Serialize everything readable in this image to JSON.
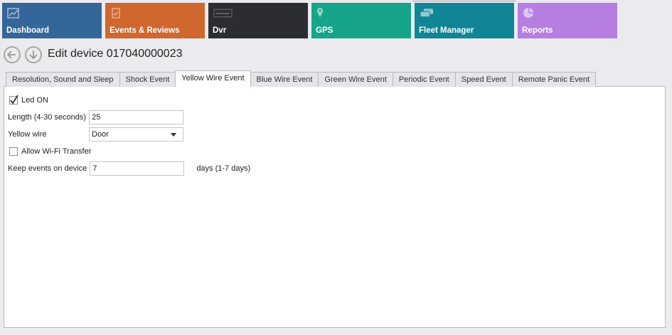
{
  "tiles": [
    {
      "label": "Dashboard",
      "icon": "chart-icon",
      "color": "#346699"
    },
    {
      "label": "Events & Reviews",
      "icon": "clipboard-icon",
      "color": "#d0672f"
    },
    {
      "label": "Dvr",
      "icon": "dvr-icon",
      "color": "#2b2d31"
    },
    {
      "label": "GPS",
      "icon": "location-pin-icon",
      "color": "#17a589"
    },
    {
      "label": "Fleet Manager",
      "icon": "cars-icon",
      "color": "#0f8596"
    },
    {
      "label": "Reports",
      "icon": "pie-chart-icon",
      "color": "#b57ee0"
    }
  ],
  "header": {
    "title": "Edit device 017040000023"
  },
  "tabs": [
    {
      "label": "Resolution, Sound and Sleep"
    },
    {
      "label": "Shock Event"
    },
    {
      "label": "Yellow Wire Event",
      "active": true
    },
    {
      "label": "Blue Wire Event"
    },
    {
      "label": "Green Wire Event"
    },
    {
      "label": "Periodic Event"
    },
    {
      "label": "Speed Event"
    },
    {
      "label": "Remote Panic Event"
    }
  ],
  "form": {
    "led_on": {
      "label": "Led ON",
      "checked": true
    },
    "length": {
      "label": "Length (4-30 seconds)",
      "value": "25"
    },
    "yellow_wire": {
      "label": "Yellow wire",
      "value": "Door"
    },
    "wifi": {
      "label": "Allow Wi-Fi Transfer",
      "checked": false
    },
    "keep": {
      "label": "Keep events on device",
      "value": "7",
      "suffix": "days (1-7 days)"
    }
  }
}
